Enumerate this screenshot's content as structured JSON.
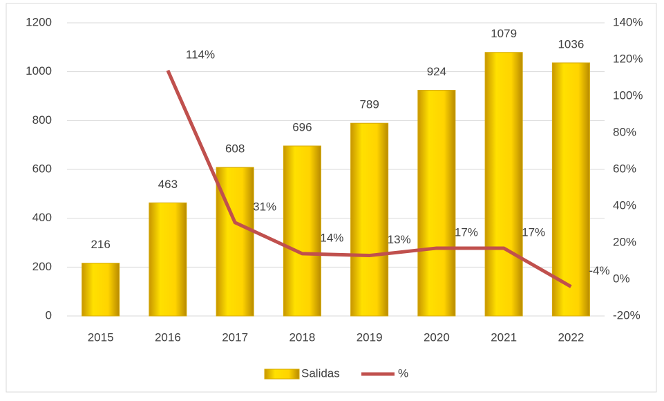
{
  "chart_data": {
    "type": "bar",
    "categories": [
      "2015",
      "2016",
      "2017",
      "2018",
      "2019",
      "2020",
      "2021",
      "2022"
    ],
    "series": [
      {
        "name": "Salidas",
        "type": "bar",
        "axis": "y",
        "color": "#f2c200",
        "values": [
          216,
          463,
          608,
          696,
          789,
          924,
          1079,
          1036
        ]
      },
      {
        "name": "%",
        "type": "line",
        "axis": "y2",
        "color": "#c0504d",
        "values": [
          null,
          114,
          31,
          14,
          13,
          17,
          17,
          -4
        ],
        "value_labels": [
          null,
          "114%",
          "31%",
          "14%",
          "13%",
          "17%",
          "17%",
          "-4%"
        ]
      }
    ],
    "ylim": [
      0,
      1200
    ],
    "yticks": [
      0,
      200,
      400,
      600,
      800,
      1000,
      1200
    ],
    "y2lim": [
      -20,
      140
    ],
    "y2ticks": [
      {
        "value": -20,
        "label": "-20%"
      },
      {
        "value": 0,
        "label": "0%"
      },
      {
        "value": 20,
        "label": "20%"
      },
      {
        "value": 40,
        "label": "40%"
      },
      {
        "value": 60,
        "label": "60%"
      },
      {
        "value": 80,
        "label": "80%"
      },
      {
        "value": 100,
        "label": "100%"
      },
      {
        "value": 120,
        "label": "120%"
      },
      {
        "value": 140,
        "label": "140%"
      }
    ],
    "grid": true,
    "legend": "bottom"
  }
}
